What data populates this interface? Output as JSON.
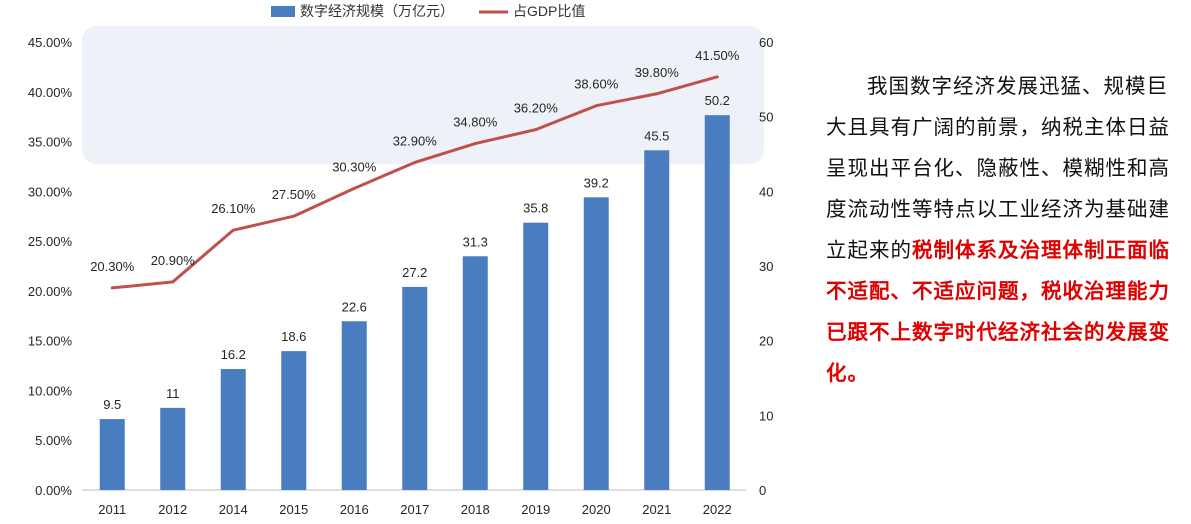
{
  "chart_data": {
    "type": "bar+line",
    "categories": [
      "2011",
      "2012",
      "2014",
      "2015",
      "2016",
      "2017",
      "2018",
      "2019",
      "2020",
      "2021",
      "2022"
    ],
    "series": [
      {
        "name": "数字经济规模（万亿元）",
        "kind": "bar",
        "axis": "right",
        "color": "#4a7dbf",
        "values": [
          9.5,
          11,
          16.2,
          18.6,
          22.6,
          27.2,
          31.3,
          35.8,
          39.2,
          45.5,
          50.2
        ],
        "labels": [
          "9.5",
          "11",
          "16.2",
          "18.6",
          "22.6",
          "27.2",
          "31.3",
          "35.8",
          "39.2",
          "45.5",
          "50.2"
        ]
      },
      {
        "name": "占GDP比值",
        "kind": "line",
        "axis": "left",
        "color": "#c0504d",
        "values": [
          20.3,
          20.9,
          26.1,
          27.5,
          30.3,
          32.9,
          34.8,
          36.2,
          38.6,
          39.8,
          41.5
        ],
        "labels": [
          "20.30%",
          "20.90%",
          "26.10%",
          "27.50%",
          "30.30%",
          "32.90%",
          "34.80%",
          "36.20%",
          "38.60%",
          "39.80%",
          "41.50%"
        ]
      }
    ],
    "y_left": {
      "ticks": [
        "0.00%",
        "5.00%",
        "10.00%",
        "15.00%",
        "20.00%",
        "25.00%",
        "30.00%",
        "35.00%",
        "40.00%",
        "45.00%"
      ],
      "range": [
        0,
        45
      ]
    },
    "y_right": {
      "ticks": [
        "0",
        "10",
        "20",
        "30",
        "40",
        "50",
        "60"
      ],
      "range": [
        0,
        60
      ]
    },
    "legend_position": "top-center",
    "grid": false
  },
  "side_text": {
    "intro": "我国数字经济发展迅猛、规模巨大且具有广阔的前景，纳税主体日益呈现出平台化、隐蔽性、模糊性和高度流动性等特点以工业经济为基础建立起来的",
    "highlight": "税制体系及治理体制正面临不适配、不适应问题，税收治理能力已跟不上数字时代经济社会的发展变化。"
  },
  "colors": {
    "bar": "#4a7dbf",
    "line": "#c0504d",
    "highlight_box": "#eef2f8",
    "highlight_text": "#e00000"
  }
}
